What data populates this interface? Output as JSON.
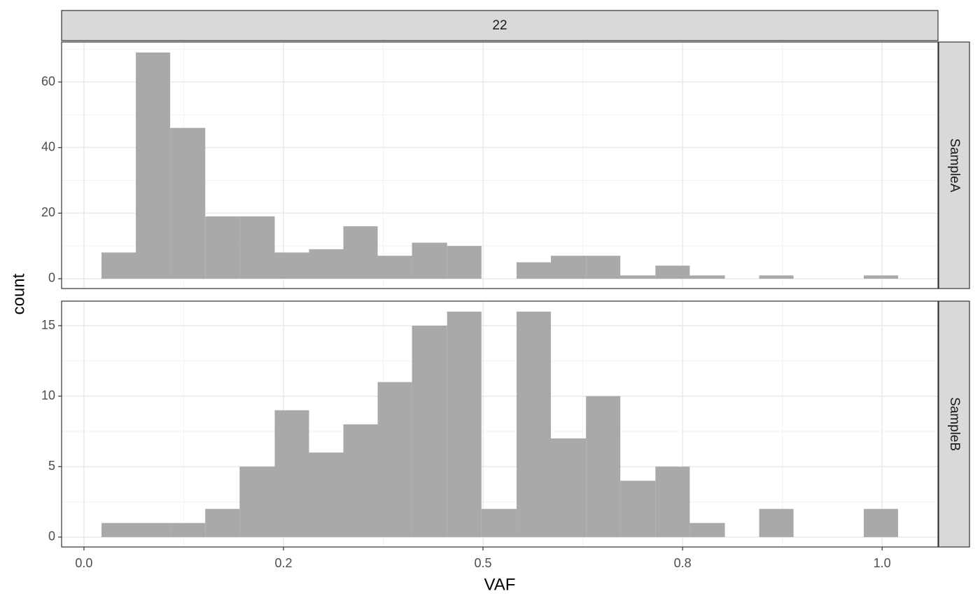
{
  "chart_data": {
    "type": "histogram",
    "facet_label": "22",
    "xlabel": "VAF",
    "ylabel": "count",
    "bins": [
      0.022,
      0.065,
      0.108,
      0.152,
      0.195,
      0.239,
      0.282,
      0.325,
      0.368,
      0.411,
      0.455,
      0.498,
      0.542,
      0.585,
      0.629,
      0.672,
      0.716,
      0.759,
      0.803,
      0.846,
      0.889,
      0.933,
      0.977,
      1.02
    ],
    "xlim": [
      -0.028,
      1.07
    ],
    "xticks": [
      {
        "value": 0,
        "label": "0.0"
      },
      {
        "value": 0.25,
        "label": "0.2"
      },
      0.5,
      {
        "value": 0.75,
        "label": "0.8"
      },
      {
        "value": 1,
        "label": "1.0"
      }
    ],
    "grid": true,
    "series": [
      {
        "name": "SampleA",
        "color": "#a9a9a9",
        "ylim": [
          -3,
          72.2
        ],
        "yticks": [
          0,
          20,
          40,
          60
        ],
        "values": [
          8,
          69,
          46,
          19,
          19,
          8,
          9,
          16,
          7,
          11,
          10,
          0,
          5,
          7,
          7,
          1,
          4,
          1,
          0,
          1,
          0,
          0,
          1
        ]
      },
      {
        "name": "SampleB",
        "color": "#a9a9a9",
        "ylim": [
          -0.7,
          16.74
        ],
        "yticks": [
          0,
          5,
          10,
          15
        ],
        "values": [
          1,
          1,
          1,
          2,
          5,
          9,
          6,
          8,
          11,
          15,
          16,
          2,
          16,
          7,
          10,
          4,
          5,
          1,
          0,
          2,
          0,
          0,
          2
        ]
      }
    ]
  }
}
